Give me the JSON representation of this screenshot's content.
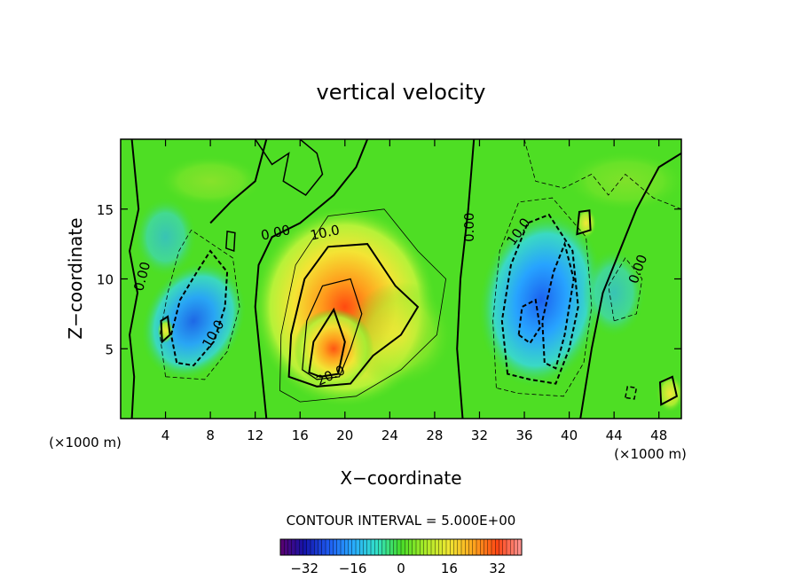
{
  "chart_data": {
    "type": "heatmap",
    "title": "vertical velocity",
    "xlabel": "X−coordinate",
    "ylabel": "Z−coordinate",
    "x_unit": "(×1000 m)",
    "y_unit": "(×1000 m)",
    "xlim": [
      0,
      50
    ],
    "ylim": [
      0,
      20
    ],
    "x_ticks": [
      4,
      8,
      12,
      16,
      20,
      24,
      28,
      32,
      36,
      40,
      44,
      48
    ],
    "y_ticks": [
      5,
      10,
      15
    ],
    "x_tick_labels": [
      "4",
      "8",
      "12",
      "16",
      "20",
      "24",
      "28",
      "32",
      "36",
      "40",
      "44",
      "48"
    ],
    "y_tick_labels": [
      "5",
      "10",
      "15"
    ],
    "contour_interval_text": "CONTOUR INTERVAL = 5.000E+00",
    "contour_interval": 5.0,
    "colorbar": {
      "range": [
        -40,
        40
      ],
      "ticks": [
        -32,
        -16,
        0,
        16,
        32
      ],
      "tick_labels": [
        "−32",
        "−16",
        "0",
        "16",
        "32"
      ]
    },
    "contour_labels": [
      {
        "text": "0.00",
        "x": 2.3,
        "z": 10.1,
        "rotate": -75
      },
      {
        "text": "10.0",
        "x": 8.6,
        "z": 5.9,
        "rotate": -60
      },
      {
        "text": "0.00",
        "x": 13.9,
        "z": 13.0,
        "rotate": -12
      },
      {
        "text": "10.0",
        "x": 18.3,
        "z": 13.0,
        "rotate": -12
      },
      {
        "text": "20.0",
        "x": 18.9,
        "z": 2.8,
        "rotate": -25
      },
      {
        "text": "0.00",
        "x": 31.5,
        "z": 13.7,
        "rotate": -90
      },
      {
        "text": "10.0",
        "x": 35.8,
        "z": 13.2,
        "rotate": -55
      },
      {
        "text": "0.00",
        "x": 46.5,
        "z": 10.6,
        "rotate": -70
      }
    ],
    "features": [
      {
        "name": "updraft",
        "x": 20.0,
        "z": 7.5,
        "peak": 24
      },
      {
        "name": "downdraft",
        "x": 6.5,
        "z": 6.0,
        "peak": -16
      },
      {
        "name": "downdraft",
        "x": 38.0,
        "z": 8.0,
        "peak": -20
      },
      {
        "name": "updraft",
        "x": 49.0,
        "z": 1.8,
        "peak": 8
      },
      {
        "name": "updraft",
        "x": 4.0,
        "z": 6.5,
        "peak": 6
      }
    ],
    "grid": false,
    "legend": "colorbar-bottom"
  }
}
